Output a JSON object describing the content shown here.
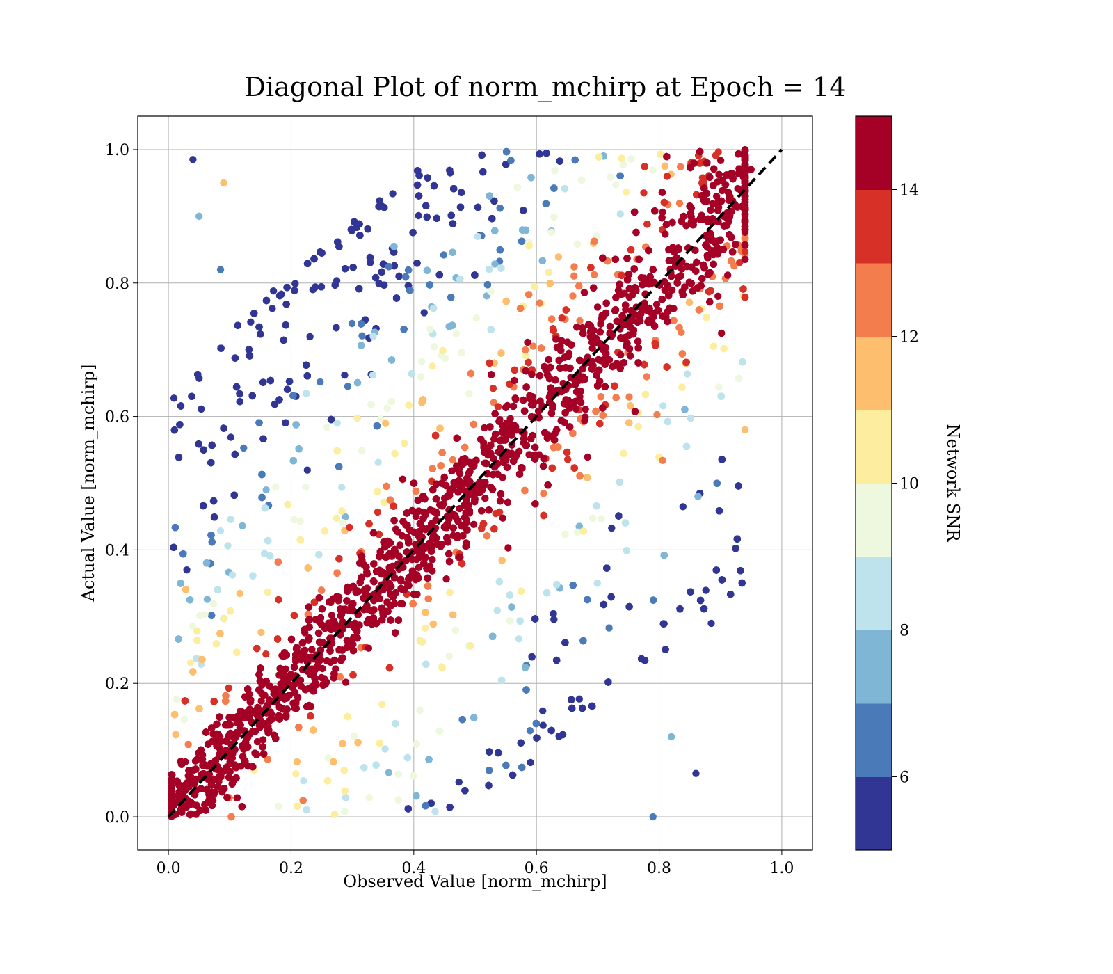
{
  "chart_data": {
    "type": "scatter",
    "title": "Diagonal Plot of norm_mchirp at Epoch = 14",
    "xlabel": "Observed Value [norm_mchirp]",
    "ylabel": "Actual Value [norm_mchirp]",
    "xlim": [
      -0.05,
      1.05
    ],
    "ylim": [
      -0.05,
      1.05
    ],
    "x_ticks": [
      "0.0",
      "0.2",
      "0.4",
      "0.6",
      "0.8",
      "1.0"
    ],
    "y_ticks": [
      "0.0",
      "0.2",
      "0.4",
      "0.6",
      "0.8",
      "1.0"
    ],
    "grid": true,
    "reference_line": {
      "x": [
        0.0,
        1.0
      ],
      "y": [
        0.0,
        1.0
      ],
      "style": "dashed",
      "color": "#000000"
    },
    "colorbar": {
      "label": "Network SNR",
      "range": [
        5,
        15
      ],
      "ticks": [
        "6",
        "8",
        "10",
        "12",
        "14"
      ],
      "tick_values": [
        6,
        8,
        10,
        12,
        14
      ],
      "bins": [
        {
          "from": 5,
          "to": 6,
          "color": "#313695"
        },
        {
          "from": 6,
          "to": 7,
          "color": "#4a7ab7"
        },
        {
          "from": 7,
          "to": 8,
          "color": "#7fb6d6"
        },
        {
          "from": 8,
          "to": 9,
          "color": "#bfe3ec"
        },
        {
          "from": 9,
          "to": 10,
          "color": "#eef8df"
        },
        {
          "from": 10,
          "to": 11,
          "color": "#fdee9f"
        },
        {
          "from": 11,
          "to": 12,
          "color": "#fdbe6e"
        },
        {
          "from": 12,
          "to": 13,
          "color": "#f47d4d"
        },
        {
          "from": 13,
          "to": 14,
          "color": "#d73027"
        },
        {
          "from": 14,
          "to": 15,
          "color": "#a50026"
        }
      ]
    },
    "scatter_description_points": [
      {
        "x": 0.04,
        "y": 0.985,
        "snr": 5
      },
      {
        "x": 0.03,
        "y": 0.37,
        "snr": 5
      },
      {
        "x": 0.09,
        "y": 0.95,
        "snr": 11
      },
      {
        "x": 0.05,
        "y": 0.9,
        "snr": 7
      },
      {
        "x": 0.085,
        "y": 0.82,
        "snr": 6
      },
      {
        "x": 0.86,
        "y": 0.065,
        "snr": 5
      },
      {
        "x": 0.885,
        "y": 0.29,
        "snr": 5
      },
      {
        "x": 0.82,
        "y": 0.12,
        "snr": 7
      },
      {
        "x": 0.79,
        "y": 0.0,
        "snr": 6
      },
      {
        "x": 0.94,
        "y": 0.58,
        "snr": 11
      },
      {
        "x": 0.95,
        "y": 0.97,
        "snr": 14
      }
    ]
  }
}
